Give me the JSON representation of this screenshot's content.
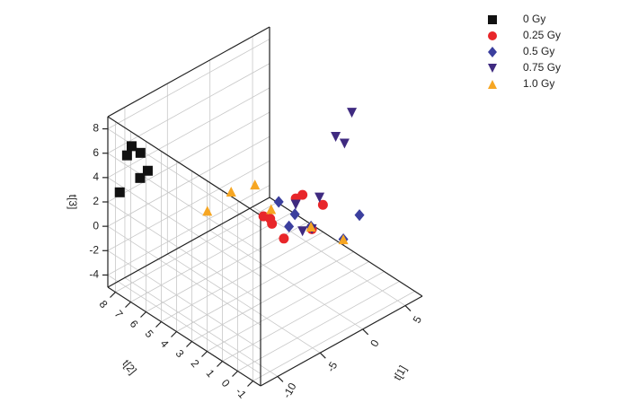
{
  "chart_data": {
    "type": "scatter3d",
    "xlabel": "t[1]",
    "ylabel": "t[2]",
    "zlabel": "t[3]",
    "xlim": [
      -12,
      7
    ],
    "xticks": [
      -10,
      -5,
      0,
      5
    ],
    "ylim": [
      -1.5,
      8.5
    ],
    "yticks": [
      -1,
      0,
      1,
      2,
      3,
      4,
      5,
      6,
      7,
      8
    ],
    "zlim": [
      -5,
      9
    ],
    "zticks": [
      -4,
      -2,
      0,
      2,
      4,
      6,
      8
    ],
    "grid": true,
    "legend": "upper right",
    "series": [
      {
        "name": "0 Gy",
        "color": "#111111",
        "marker": "square",
        "x": [
          -11,
          -11,
          -10.5,
          -10,
          -11.5,
          -10
        ],
        "y": [
          7.5,
          7.8,
          7.2,
          7,
          8,
          7.5
        ],
        "z": [
          7,
          6,
          6.5,
          5,
          3,
          4
        ]
      },
      {
        "name": "0.25 Gy",
        "color": "#e8262a",
        "marker": "circle",
        "x": [
          1,
          2,
          0,
          3,
          1.5,
          -1,
          2.5,
          1
        ],
        "y": [
          3,
          4,
          5,
          3.5,
          4.5,
          4,
          2.5,
          5
        ],
        "z": [
          2,
          0.5,
          -1,
          -2,
          -3,
          0,
          1,
          -2
        ]
      },
      {
        "name": "0.5 Gy",
        "color": "#3b3f9e",
        "marker": "diamond",
        "x": [
          0,
          2,
          3,
          4,
          1,
          5
        ],
        "y": [
          4,
          3,
          5,
          2,
          3.5,
          1.5
        ],
        "z": [
          1,
          -1,
          -3,
          -2,
          0,
          0
        ]
      },
      {
        "name": "0.75 Gy",
        "color": "#3f2a80",
        "marker": "triangle-down",
        "x": [
          5,
          4,
          4.5,
          3,
          2,
          1,
          3
        ],
        "y": [
          2,
          2.5,
          2.2,
          3,
          4,
          3,
          3.5
        ],
        "z": [
          8,
          6,
          5.5,
          1,
          0,
          -1,
          -2
        ]
      },
      {
        "name": "1.0 Gy",
        "color": "#f6a623",
        "marker": "triangle-up",
        "x": [
          -2,
          -1,
          0,
          -3,
          4,
          2
        ],
        "y": [
          6,
          5,
          4.5,
          7,
          2,
          3
        ],
        "z": [
          1,
          2,
          0,
          -1,
          -2,
          -1
        ]
      }
    ]
  }
}
